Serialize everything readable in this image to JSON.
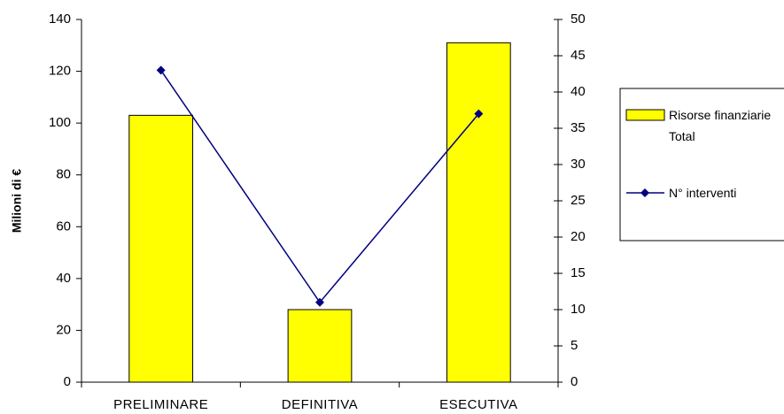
{
  "chart_data": {
    "type": "combo",
    "y_label": "Milioni di €",
    "categories": [
      "PRELIMINARE",
      "DEFINITIVA",
      "ESECUTIVA"
    ],
    "series": [
      {
        "name": "Risorse finanziarie Total",
        "type": "bar",
        "color": "#ffff00",
        "values": [
          103,
          28,
          131
        ]
      },
      {
        "name": "N° interventi",
        "type": "line",
        "color": "#000080",
        "axis": "y2",
        "values": [
          43,
          11,
          37
        ]
      }
    ],
    "ylim": [
      0,
      140
    ],
    "yticks": [
      0,
      20,
      40,
      60,
      80,
      100,
      120,
      140
    ],
    "y2lim": [
      0,
      50
    ],
    "y2ticks": [
      0,
      5,
      10,
      15,
      20,
      25,
      30,
      35,
      40,
      45,
      50
    ],
    "grid": false,
    "legend": "right"
  }
}
